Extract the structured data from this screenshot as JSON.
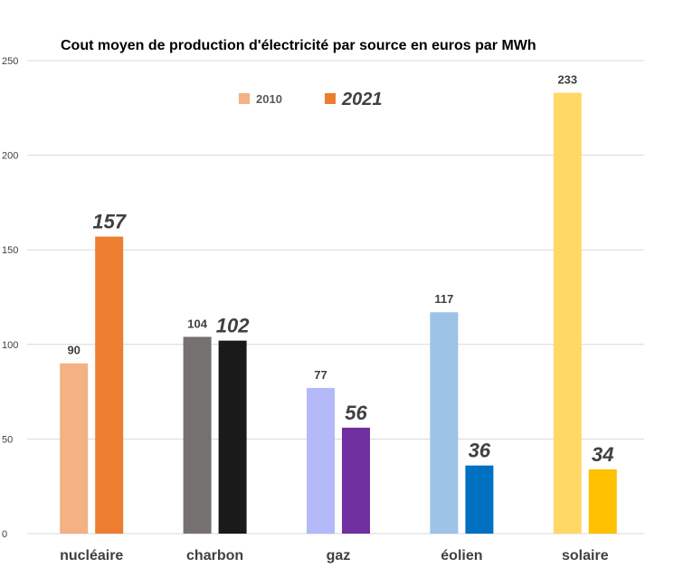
{
  "chart_data": {
    "type": "bar",
    "title": "Cout moyen de production d'électricité par source en euros par MWh",
    "xlabel": "",
    "ylabel": "",
    "ylim": [
      0,
      250
    ],
    "yticks": [
      0,
      50,
      100,
      150,
      200,
      250
    ],
    "grid": true,
    "legend": "top-center",
    "categories": [
      "nucléaire",
      "charbon",
      "gaz",
      "éolien",
      "solaire"
    ],
    "series": [
      {
        "name": "2010",
        "values": [
          90,
          104,
          77,
          117,
          233
        ],
        "colors": [
          "#f4b183",
          "#767171",
          "#b4b9f9",
          "#9dc3e6",
          "#ffd966"
        ]
      },
      {
        "name": "2021",
        "values": [
          157,
          102,
          56,
          36,
          34
        ],
        "colors": [
          "#ed7d31",
          "#1a1a1a",
          "#7030a0",
          "#0070c0",
          "#ffc000"
        ]
      }
    ]
  }
}
